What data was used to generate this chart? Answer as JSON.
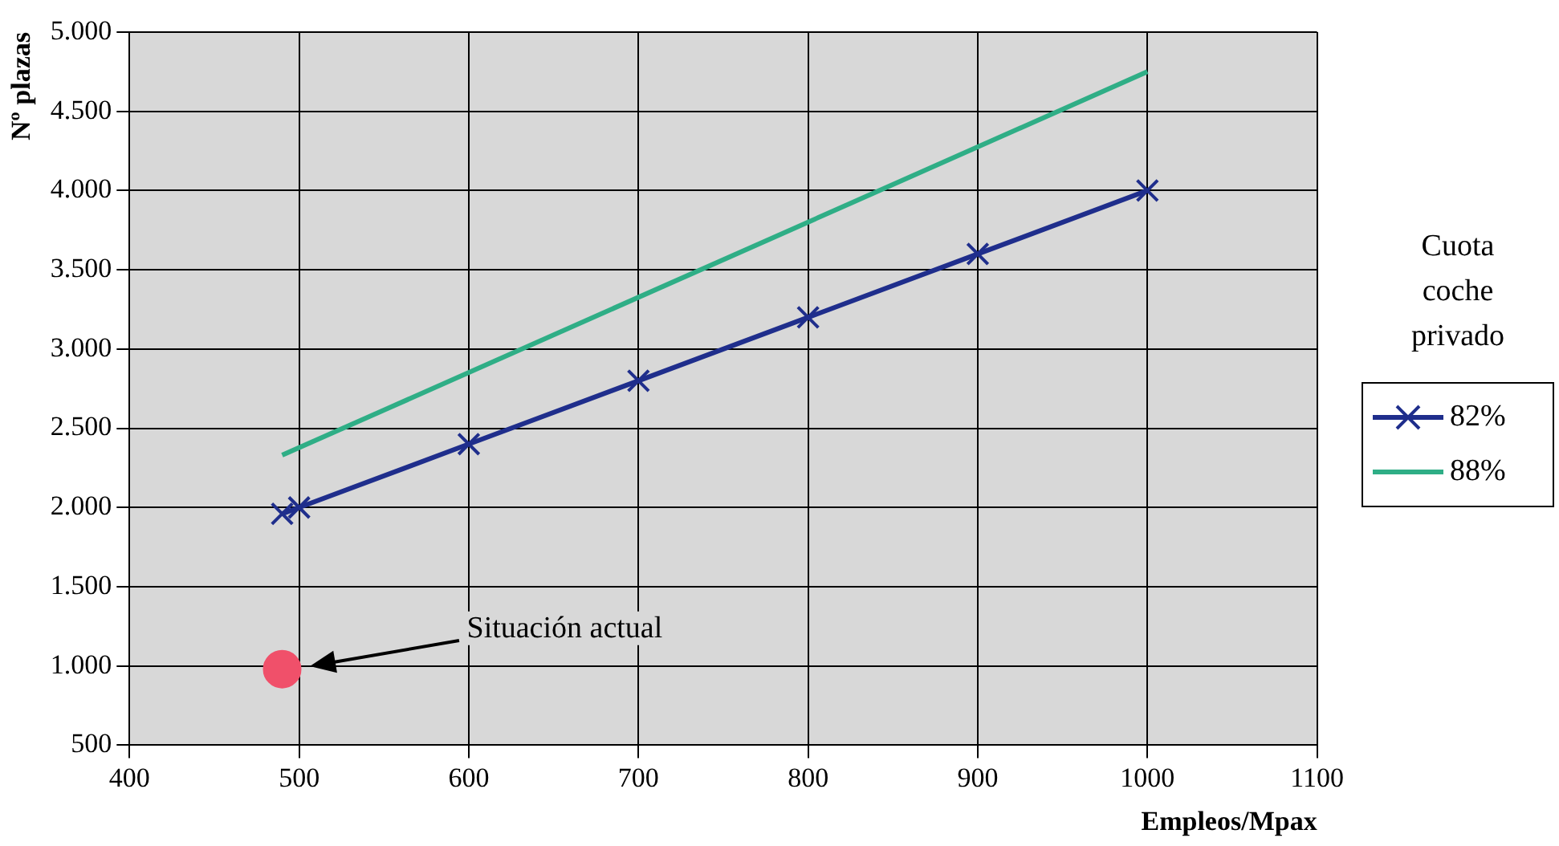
{
  "chart_data": {
    "type": "line",
    "xlabel": "Empleos/Mpax",
    "ylabel": "Nº plazas",
    "legend_title": "Cuota coche privado",
    "legend": "right",
    "grid": true,
    "line_style": "solid",
    "xlim": [
      400,
      1100
    ],
    "xticks": [
      400,
      500,
      600,
      700,
      800,
      900,
      1000,
      1100
    ],
    "ylim": [
      500,
      5000
    ],
    "yticks": [
      {
        "value": 500,
        "label": "500"
      },
      {
        "value": 1000,
        "label": "1.000"
      },
      {
        "value": 1500,
        "label": "1.500"
      },
      {
        "value": 2000,
        "label": "2.000"
      },
      {
        "value": 2500,
        "label": "2.500"
      },
      {
        "value": 3000,
        "label": "3.000"
      },
      {
        "value": 3500,
        "label": "3.500"
      },
      {
        "value": 4000,
        "label": "4.000"
      },
      {
        "value": 4500,
        "label": "4.500"
      },
      {
        "value": 5000,
        "label": "5.000"
      }
    ],
    "series": [
      {
        "name": "82%",
        "color": "#1f2e8c",
        "marker": "cross",
        "x": [
          490,
          500,
          600,
          700,
          800,
          900,
          1000
        ],
        "values": [
          1960,
          2000,
          2400,
          2800,
          3200,
          3600,
          4000
        ]
      },
      {
        "name": "88%",
        "color": "#2fae86",
        "marker": "none",
        "x": [
          490,
          1000
        ],
        "values": [
          2330,
          4750
        ]
      },
      {
        "type": "scatter",
        "color": "#f0506a",
        "marker": "circle",
        "x": [
          490
        ],
        "values": [
          980
        ]
      }
    ],
    "annotations": [
      "Situación actual"
    ]
  }
}
